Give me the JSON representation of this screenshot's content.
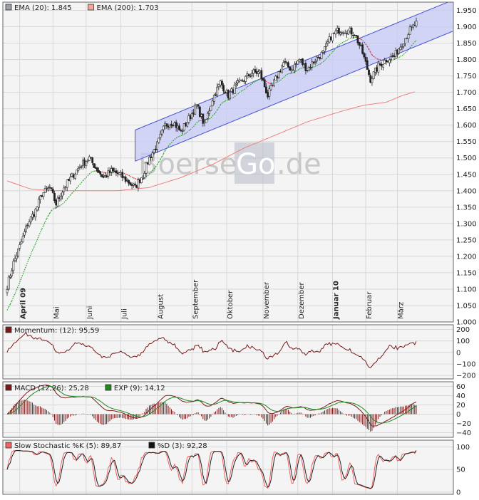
{
  "watermark": {
    "part1": "Boerse",
    "part2": "Go",
    "part3": ".de"
  },
  "colors": {
    "panel_bg": "#f4f4f4",
    "grid": "#d8d8d8",
    "frame": "#666666",
    "channel_fill": "#c6c9f5",
    "channel_line": "#4a55d6",
    "ema200": "#f08080",
    "ema20_up": "#2a9d2a",
    "ema20_down": "#d62020",
    "candle": "#222222",
    "momentum": "#7a1a1a",
    "macd_hist": "#7a1a1a",
    "macd_line": "#7a1a1a",
    "exp_line": "#1c8a1c",
    "stoch_k": "#f06060",
    "stoch_d": "#222222"
  },
  "legends": {
    "main": [
      {
        "label": "EMA (20): 1.845",
        "color": "#9aa0a6"
      },
      {
        "label": "EMA (200): 1.703",
        "color": "#f4a8a0"
      }
    ],
    "momentum": [
      {
        "label": "Momentum: (12): 95,59",
        "color": "#7a1a1a"
      }
    ],
    "macd": [
      {
        "label": "MACD (12,26): 25,28",
        "color": "#7a1a1a"
      },
      {
        "label": "EXP (9): 14,12",
        "color": "#1c8a1c"
      }
    ],
    "stoch": [
      {
        "label": "Slow Stochastic %K (5): 89,87",
        "color": "#f06060"
      },
      {
        "label": "%D (3): 92,28",
        "color": "#111111"
      }
    ]
  },
  "chart_data": [
    {
      "type": "candlestick",
      "panel": "price",
      "ylim": [
        1.0,
        1.975
      ],
      "y_ticks": [
        "1.000",
        "1.050",
        "1.100",
        "1.150",
        "1.200",
        "1.250",
        "1.300",
        "1.350",
        "1.400",
        "1.450",
        "1.500",
        "1.550",
        "1.600",
        "1.650",
        "1.700",
        "1.750",
        "1.800",
        "1.850",
        "1.900",
        "1.950"
      ],
      "y_tick_values": [
        1.0,
        1.05,
        1.1,
        1.15,
        1.2,
        1.25,
        1.3,
        1.35,
        1.4,
        1.45,
        1.5,
        1.55,
        1.6,
        1.65,
        1.7,
        1.75,
        1.8,
        1.85,
        1.9,
        1.95
      ],
      "x_months": [
        {
          "label": "April 09",
          "bold": true
        },
        {
          "label": "Mai",
          "bold": false
        },
        {
          "label": "Juni",
          "bold": false
        },
        {
          "label": "Juli",
          "bold": false
        },
        {
          "label": "August",
          "bold": false
        },
        {
          "label": "September",
          "bold": false
        },
        {
          "label": "Oktober",
          "bold": false
        },
        {
          "label": "November",
          "bold": false
        },
        {
          "label": "Dezember",
          "bold": false
        },
        {
          "label": "Januar 10",
          "bold": true
        },
        {
          "label": "Februar",
          "bold": false
        },
        {
          "label": "März",
          "bold": false
        }
      ],
      "x_month_day_index": [
        8,
        29,
        50,
        72,
        95,
        117,
        139,
        162,
        184,
        206,
        227,
        247
      ],
      "days": 260,
      "price_path": [
        [
          0,
          1.11
        ],
        [
          4,
          1.18
        ],
        [
          8,
          1.23
        ],
        [
          13,
          1.3
        ],
        [
          18,
          1.34
        ],
        [
          22,
          1.39
        ],
        [
          27,
          1.41
        ],
        [
          31,
          1.36
        ],
        [
          36,
          1.41
        ],
        [
          42,
          1.45
        ],
        [
          47,
          1.48
        ],
        [
          52,
          1.5
        ],
        [
          56,
          1.47
        ],
        [
          61,
          1.44
        ],
        [
          66,
          1.46
        ],
        [
          71,
          1.45
        ],
        [
          76,
          1.43
        ],
        [
          81,
          1.41
        ],
        [
          86,
          1.45
        ],
        [
          90,
          1.5
        ],
        [
          95,
          1.54
        ],
        [
          100,
          1.6
        ],
        [
          105,
          1.61
        ],
        [
          110,
          1.58
        ],
        [
          115,
          1.62
        ],
        [
          120,
          1.66
        ],
        [
          125,
          1.6
        ],
        [
          130,
          1.68
        ],
        [
          135,
          1.73
        ],
        [
          140,
          1.69
        ],
        [
          145,
          1.72
        ],
        [
          150,
          1.74
        ],
        [
          155,
          1.76
        ],
        [
          160,
          1.76
        ],
        [
          165,
          1.69
        ],
        [
          170,
          1.74
        ],
        [
          175,
          1.79
        ],
        [
          180,
          1.77
        ],
        [
          185,
          1.8
        ],
        [
          190,
          1.77
        ],
        [
          195,
          1.8
        ],
        [
          200,
          1.82
        ],
        [
          205,
          1.87
        ],
        [
          210,
          1.89
        ],
        [
          215,
          1.89
        ],
        [
          220,
          1.88
        ],
        [
          225,
          1.82
        ],
        [
          230,
          1.74
        ],
        [
          235,
          1.78
        ],
        [
          240,
          1.8
        ],
        [
          245,
          1.81
        ],
        [
          250,
          1.85
        ],
        [
          255,
          1.89
        ],
        [
          259,
          1.91
        ]
      ],
      "ema200_path": [
        [
          0,
          1.43
        ],
        [
          15,
          1.405
        ],
        [
          30,
          1.4
        ],
        [
          50,
          1.4
        ],
        [
          70,
          1.4
        ],
        [
          90,
          1.41
        ],
        [
          110,
          1.44
        ],
        [
          130,
          1.48
        ],
        [
          150,
          1.53
        ],
        [
          170,
          1.57
        ],
        [
          190,
          1.61
        ],
        [
          210,
          1.64
        ],
        [
          225,
          1.66
        ],
        [
          240,
          1.67
        ],
        [
          250,
          1.69
        ],
        [
          259,
          1.703
        ]
      ],
      "ema20_last": 1.845,
      "ema200_last": 1.703,
      "channel": {
        "start_day": 81,
        "end_day": 282,
        "lower_start": 1.49,
        "upper_start": 1.585,
        "slope_per_day": 0.00197
      }
    },
    {
      "type": "line",
      "panel": "momentum",
      "ylim": [
        -230,
        240
      ],
      "y_ticks": [
        "200",
        "100",
        "0",
        "−100",
        "−200"
      ],
      "y_tick_values": [
        200,
        100,
        0,
        -100,
        -200
      ],
      "last": 95.59
    },
    {
      "type": "bar+line",
      "panel": "macd",
      "ylim": [
        -50,
        70
      ],
      "y_ticks": [
        "60",
        "40",
        "20",
        "0",
        "−20",
        "−40"
      ],
      "y_tick_values": [
        60,
        40,
        20,
        0,
        -20,
        -40
      ],
      "macd_last": 25.28,
      "exp_last": 14.12
    },
    {
      "type": "line",
      "panel": "stochastic",
      "ylim": [
        -5,
        115
      ],
      "y_ticks": [
        "100",
        "50",
        "0"
      ],
      "y_tick_values": [
        100,
        50,
        0
      ],
      "k_last": 89.87,
      "d_last": 92.28
    }
  ]
}
